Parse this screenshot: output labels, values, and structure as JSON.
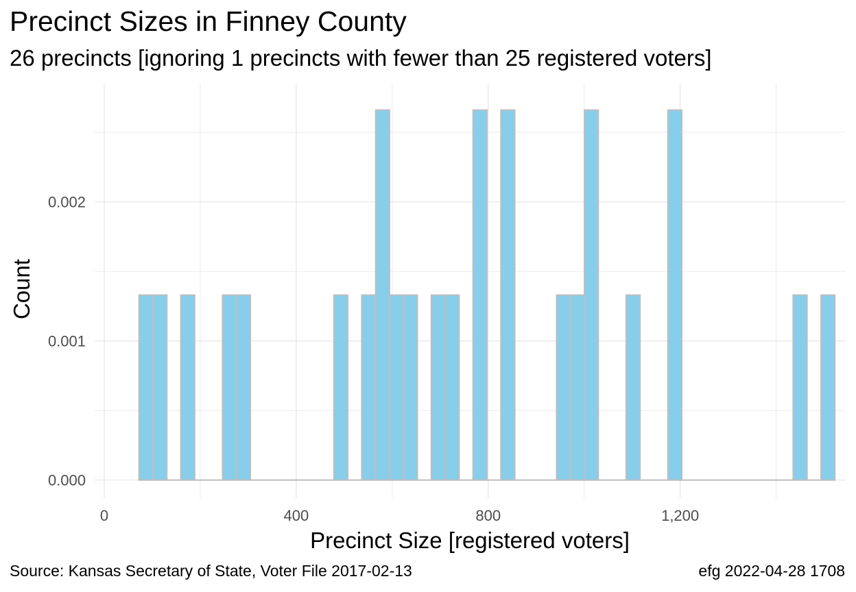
{
  "title": "Precinct Sizes in Finney County",
  "subtitle": "26 precincts [ignoring 1 precincts with fewer than 25 registered voters]",
  "caption_left": "Source:  Kansas Secretary of State, Voter File  2017-02-13",
  "caption_right": "efg 2022-04-28 1708",
  "colors": {
    "bar_fill": "#87ceeb",
    "bar_stroke": "#bebebe",
    "grid": "#ebebeb"
  },
  "chart_data": {
    "type": "bar",
    "xlabel": "Precinct Size [registered voters]",
    "ylabel": "Count",
    "xlim": [
      -20,
      1545
    ],
    "ylim": [
      -0.00013,
      0.00285
    ],
    "x_ticks": [
      0,
      400,
      800,
      1200
    ],
    "x_tick_labels": [
      "0",
      "400",
      "800",
      "1,200"
    ],
    "y_ticks": [
      0,
      0.001,
      0.002
    ],
    "y_tick_labels": [
      "0.000",
      "0.001",
      "0.002"
    ],
    "bin_width": 29,
    "bins": [
      {
        "x": 87,
        "value": 0.00133
      },
      {
        "x": 116,
        "value": 0.00133
      },
      {
        "x": 174,
        "value": 0.00133
      },
      {
        "x": 261,
        "value": 0.00133
      },
      {
        "x": 290,
        "value": 0.00133
      },
      {
        "x": 493,
        "value": 0.00133
      },
      {
        "x": 551,
        "value": 0.00133
      },
      {
        "x": 580,
        "value": 0.00266
      },
      {
        "x": 609,
        "value": 0.00133
      },
      {
        "x": 638,
        "value": 0.00133
      },
      {
        "x": 696,
        "value": 0.00133
      },
      {
        "x": 725,
        "value": 0.00133
      },
      {
        "x": 783,
        "value": 0.00266
      },
      {
        "x": 841,
        "value": 0.00266
      },
      {
        "x": 957,
        "value": 0.00133
      },
      {
        "x": 986,
        "value": 0.00133
      },
      {
        "x": 1015,
        "value": 0.00266
      },
      {
        "x": 1102,
        "value": 0.00133
      },
      {
        "x": 1189,
        "value": 0.00266
      },
      {
        "x": 1450,
        "value": 0.00133
      },
      {
        "x": 1508,
        "value": 0.00133
      }
    ],
    "baseline_range": [
      72,
      1523
    ],
    "grid": true
  }
}
